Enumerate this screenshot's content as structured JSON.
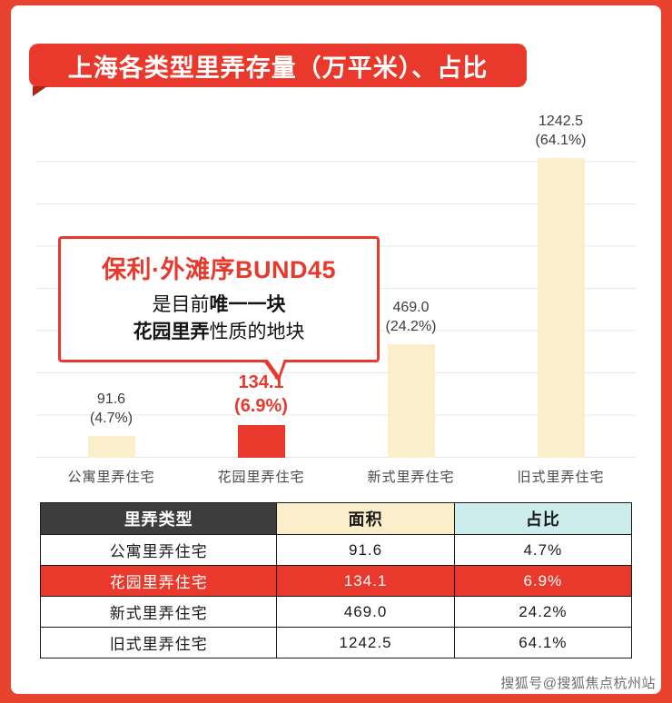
{
  "title": "上海各类型里弄存量（万平米）、占比",
  "watermark": "搜狐号@搜狐焦点杭州站",
  "callout": {
    "title": "保利·外滩序BUND45",
    "line2_pre": "是目前",
    "line2_bold": "唯一一块",
    "line3_bold": "花园里弄",
    "line3_rest": "性质的地块"
  },
  "chart_data": {
    "type": "bar",
    "title": "上海各类型里弄存量（万平米）、占比",
    "categories": [
      "公寓里弄住宅",
      "花园里弄住宅",
      "新式里弄住宅",
      "旧式里弄住宅"
    ],
    "values": [
      91.6,
      134.1,
      469.0,
      1242.5
    ],
    "value_labels": [
      "91.6",
      "134.1",
      "469.0",
      "1242.5"
    ],
    "pct_labels": [
      "(4.7%)",
      "(6.9%)",
      "(24.2%)",
      "(64.1%)"
    ],
    "unit": "万平米",
    "ylim": [
      0,
      1400
    ],
    "grid": true,
    "legend": false,
    "highlight_index": 1,
    "colors": {
      "bar": "#faeecb",
      "highlight": "#e8392c"
    }
  },
  "table": {
    "headers": [
      "里弄类型",
      "面积",
      "占比"
    ],
    "rows": [
      [
        "公寓里弄住宅",
        "91.6",
        "4.7%"
      ],
      [
        "花园里弄住宅",
        "134.1",
        "6.9%"
      ],
      [
        "新式里弄住宅",
        "469.0",
        "24.2%"
      ],
      [
        "旧式里弄住宅",
        "1242.5",
        "64.1%"
      ]
    ],
    "highlight_row": 1,
    "header_colors": {
      "type": "#3d3d3d",
      "area": "#faeecb",
      "ratio": "#cdecec"
    }
  }
}
